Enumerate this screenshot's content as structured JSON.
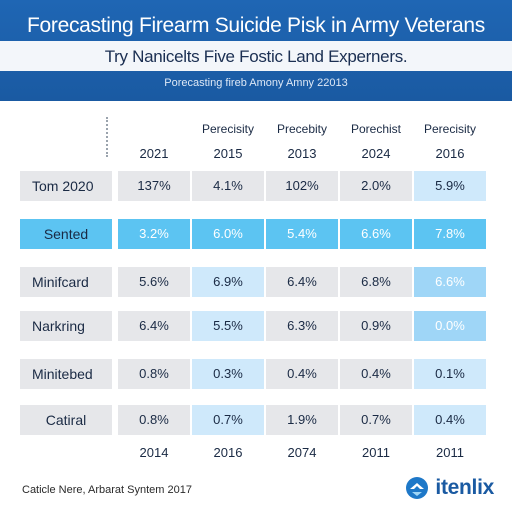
{
  "header": {
    "title": "Forecasting Firearm Suicide Pisk in Army Veterans",
    "subtitle": "Try Nanicelts Five Fostic Land Experners.",
    "caption": "Porecasting fireb Amony Amny 22013"
  },
  "table": {
    "columns": [
      {
        "top": "",
        "year": "2021"
      },
      {
        "top": "Perecisity",
        "year": "2015"
      },
      {
        "top": "Precebity",
        "year": "2013"
      },
      {
        "top": "Porechist",
        "year": "2024"
      },
      {
        "top": "Perecisity",
        "year": "2016"
      }
    ],
    "rows": [
      {
        "label": "Tom 2020",
        "values": [
          "137%",
          "4.1%",
          "102%",
          "2.0%",
          "5.9%"
        ]
      },
      {
        "label": "Sented",
        "values": [
          "3.2%",
          "6.0%",
          "5.4%",
          "6.6%",
          "7.8%"
        ]
      },
      {
        "label": "Minifcard",
        "values": [
          "5.6%",
          "6.9%",
          "6.4%",
          "6.8%",
          "6.6%"
        ]
      },
      {
        "label": "Narkring",
        "values": [
          "6.4%",
          "5.5%",
          "6.3%",
          "0.9%",
          "0.0%"
        ]
      },
      {
        "label": "Minitebed",
        "values": [
          "0.8%",
          "0.3%",
          "0.4%",
          "0.4%",
          "0.1%"
        ]
      },
      {
        "label": "Catiral",
        "values": [
          "0.8%",
          "0.7%",
          "1.9%",
          "0.7%",
          "0.4%"
        ]
      }
    ],
    "bottom_years": [
      "2014",
      "2016",
      "2074",
      "2011",
      "2011"
    ]
  },
  "footer": {
    "source": "Caticle Nere, Arbarat Syntem 2017",
    "brand": "itenlix"
  },
  "colors": {
    "header_blue": "#1f66b4",
    "highlight_row": "#5cc4f2",
    "light_blue_col": "#cfe9fb",
    "gray_cell": "#e6e7ea",
    "brand_blue": "#1a5aa2"
  }
}
